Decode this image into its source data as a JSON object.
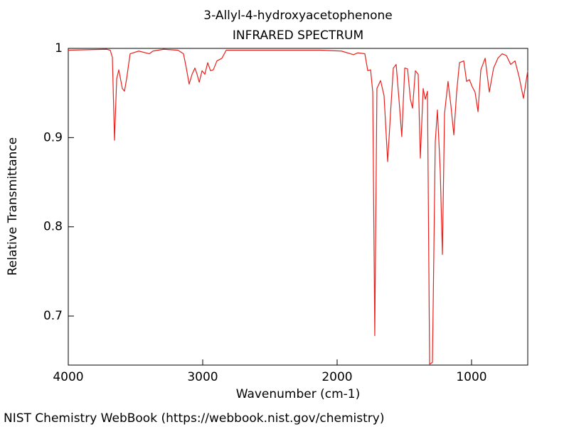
{
  "chart_data": {
    "type": "line",
    "title": "3-Allyl-4-hydroxyacetophenone",
    "subtitle": "INFRARED SPECTRUM",
    "x_label": "Wavenumber (cm-1)",
    "y_label": "Relative Transmittance",
    "source": "NIST Chemistry WebBook (https://webbook.nist.gov/chemistry)",
    "x": [
      4000,
      3714,
      3688,
      3672,
      3656,
      3640,
      3624,
      3598,
      3582,
      3566,
      3540,
      3476,
      3397,
      3370,
      3291,
      3185,
      3143,
      3122,
      3101,
      3079,
      3058,
      3042,
      3026,
      3005,
      2984,
      2963,
      2942,
      2921,
      2894,
      2857,
      2825,
      2656,
      2127,
      1968,
      1878,
      1847,
      1794,
      1772,
      1751,
      1735,
      1720,
      1704,
      1677,
      1651,
      1624,
      1603,
      1582,
      1561,
      1540,
      1519,
      1497,
      1476,
      1455,
      1439,
      1418,
      1397,
      1381,
      1360,
      1344,
      1328,
      1312,
      1291,
      1270,
      1254,
      1233,
      1217,
      1201,
      1175,
      1153,
      1132,
      1111,
      1090,
      1058,
      1037,
      1016,
      995,
      974,
      952,
      931,
      899,
      868,
      836,
      804,
      772,
      741,
      709,
      677,
      646,
      614,
      582
    ],
    "series": [
      {
        "name": "3-Allyl-4-hydroxyacetophenone",
        "color": "#e8211d",
        "values": [
          0.998,
          0.999,
          0.998,
          0.99,
          0.897,
          0.966,
          0.976,
          0.955,
          0.952,
          0.966,
          0.994,
          0.997,
          0.994,
          0.997,
          0.999,
          0.998,
          0.994,
          0.978,
          0.96,
          0.971,
          0.978,
          0.971,
          0.962,
          0.975,
          0.971,
          0.984,
          0.975,
          0.976,
          0.986,
          0.989,
          0.998,
          0.998,
          0.998,
          0.997,
          0.993,
          0.995,
          0.994,
          0.975,
          0.976,
          0.951,
          0.678,
          0.955,
          0.964,
          0.947,
          0.873,
          0.927,
          0.978,
          0.982,
          0.943,
          0.901,
          0.978,
          0.977,
          0.943,
          0.933,
          0.975,
          0.971,
          0.877,
          0.955,
          0.943,
          0.952,
          0.646,
          0.648,
          0.895,
          0.931,
          0.863,
          0.769,
          0.927,
          0.963,
          0.935,
          0.903,
          0.951,
          0.984,
          0.986,
          0.963,
          0.965,
          0.957,
          0.951,
          0.929,
          0.976,
          0.989,
          0.951,
          0.978,
          0.989,
          0.994,
          0.992,
          0.982,
          0.986,
          0.968,
          0.944,
          0.975
        ]
      }
    ],
    "xlim": [
      4000,
      582
    ],
    "ylim": [
      0.645,
      1
    ],
    "xticks": [
      4000,
      3000,
      2000,
      1000
    ],
    "yticks": [
      0.7,
      0.8,
      0.9,
      1
    ],
    "grid": false
  }
}
